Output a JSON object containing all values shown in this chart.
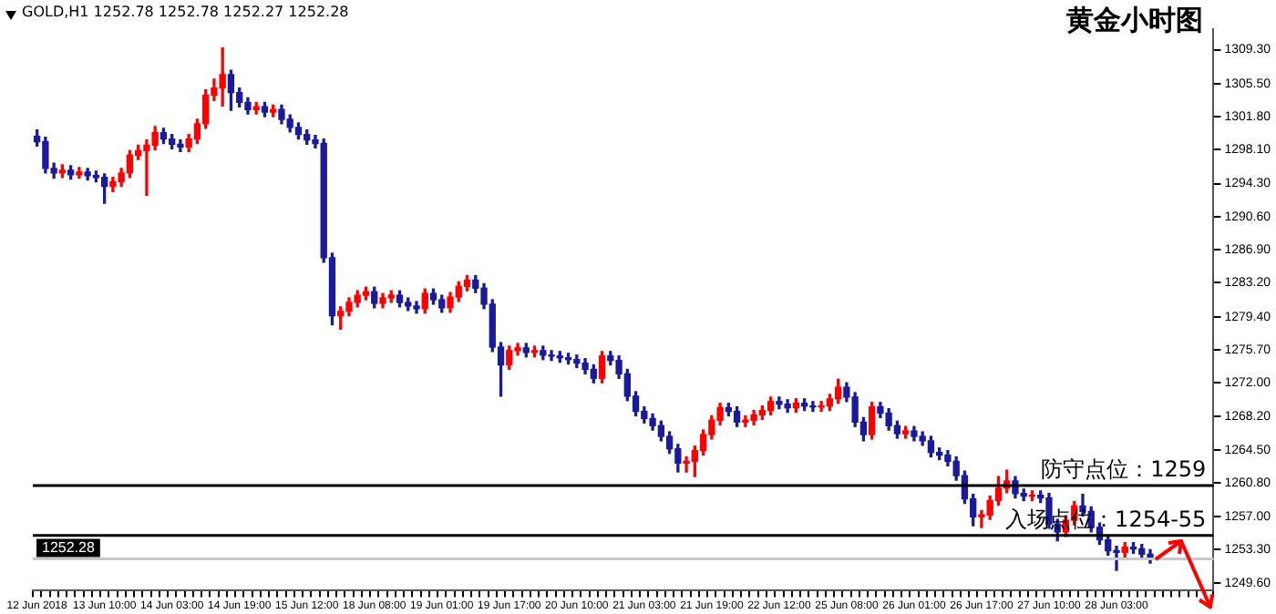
{
  "chart_data": {
    "type": "candlestick",
    "title": "黄金小时图",
    "subtitle": "GOLD,H1  1252.78 1252.78 1252.27 1252.28",
    "categories": [
      "12 Jun 2018",
      null,
      null,
      null,
      null,
      null,
      null,
      null,
      "13 Jun 10:00",
      null,
      null,
      null,
      null,
      null,
      null,
      null,
      "14 Jun 03:00",
      null,
      null,
      null,
      null,
      null,
      null,
      null,
      "14 Jun 19:00",
      null,
      null,
      null,
      null,
      null,
      null,
      null,
      "15 Jun 12:00",
      null,
      null,
      null,
      null,
      null,
      null,
      null,
      "18 Jun 08:00",
      null,
      null,
      null,
      null,
      null,
      null,
      null,
      "19 Jun 01:00",
      null,
      null,
      null,
      null,
      null,
      null,
      null,
      "19 Jun 17:00",
      null,
      null,
      null,
      null,
      null,
      null,
      null,
      "20 Jun 10:00",
      null,
      null,
      null,
      null,
      null,
      null,
      null,
      "21 Jun 03:00",
      null,
      null,
      null,
      null,
      null,
      null,
      null,
      "21 Jun 19:00",
      null,
      null,
      null,
      null,
      null,
      null,
      null,
      "22 Jun 12:00",
      null,
      null,
      null,
      null,
      null,
      null,
      null,
      "25 Jun 08:00",
      null,
      null,
      null,
      null,
      null,
      null,
      null,
      "26 Jun 01:00",
      null,
      null,
      null,
      null,
      null,
      null,
      null,
      "26 Jun 17:00",
      null,
      null,
      null,
      null,
      null,
      null,
      null,
      "27 Jun 10:00",
      null,
      null,
      null,
      null,
      null,
      null,
      null,
      "28 Jun 03:00",
      null,
      null,
      null,
      null,
      null,
      null,
      null,
      null,
      null,
      null,
      null
    ],
    "ohlc": [
      [
        1299.6,
        1300.3,
        1298.5,
        1299.0
      ],
      [
        1299.0,
        1299.5,
        1295.5,
        1296.0
      ],
      [
        1296.0,
        1296.6,
        1294.9,
        1295.5
      ],
      [
        1295.5,
        1296.4,
        1295.0,
        1295.8
      ],
      [
        1295.8,
        1296.3,
        1294.8,
        1295.3
      ],
      [
        1295.3,
        1296.1,
        1294.9,
        1295.6
      ],
      [
        1295.6,
        1296.0,
        1294.7,
        1295.2
      ],
      [
        1295.2,
        1295.7,
        1294.5,
        1295.0
      ],
      [
        1295.0,
        1295.4,
        1292.1,
        1294.0
      ],
      [
        1294.0,
        1295.0,
        1293.4,
        1294.5
      ],
      [
        1294.5,
        1296.0,
        1294.0,
        1295.5
      ],
      [
        1295.5,
        1298.0,
        1295.0,
        1297.5
      ],
      [
        1297.5,
        1298.6,
        1297.0,
        1298.0
      ],
      [
        1298.0,
        1299.2,
        1293.0,
        1298.6
      ],
      [
        1298.6,
        1300.7,
        1298.1,
        1300.0
      ],
      [
        1300.0,
        1300.5,
        1298.8,
        1299.3
      ],
      [
        1299.3,
        1299.8,
        1298.2,
        1298.7
      ],
      [
        1298.7,
        1299.2,
        1297.9,
        1298.4
      ],
      [
        1298.4,
        1299.8,
        1297.9,
        1299.3
      ],
      [
        1299.3,
        1301.5,
        1298.8,
        1301.0
      ],
      [
        1301.0,
        1304.8,
        1300.5,
        1304.2
      ],
      [
        1304.2,
        1306.0,
        1303.6,
        1305.0
      ],
      [
        1305.0,
        1309.5,
        1303.0,
        1306.5
      ],
      [
        1306.5,
        1307.0,
        1302.5,
        1304.5
      ],
      [
        1304.5,
        1305.0,
        1302.9,
        1303.4
      ],
      [
        1303.4,
        1303.9,
        1302.1,
        1302.6
      ],
      [
        1302.6,
        1303.4,
        1302.1,
        1302.9
      ],
      [
        1302.9,
        1303.4,
        1301.8,
        1302.3
      ],
      [
        1302.3,
        1303.1,
        1301.8,
        1302.6
      ],
      [
        1302.6,
        1303.1,
        1301.0,
        1301.5
      ],
      [
        1301.5,
        1302.0,
        1300.1,
        1300.6
      ],
      [
        1300.6,
        1301.1,
        1299.3,
        1299.8
      ],
      [
        1299.8,
        1300.3,
        1298.7,
        1299.2
      ],
      [
        1299.2,
        1299.7,
        1298.3,
        1298.8
      ],
      [
        1298.8,
        1299.3,
        1285.5,
        1286.0
      ],
      [
        1286.0,
        1286.5,
        1278.5,
        1279.5
      ],
      [
        1279.5,
        1280.5,
        1278.0,
        1280.0
      ],
      [
        1280.0,
        1281.5,
        1279.5,
        1281.0
      ],
      [
        1281.0,
        1282.3,
        1280.5,
        1281.8
      ],
      [
        1281.8,
        1282.7,
        1281.3,
        1282.2
      ],
      [
        1282.2,
        1282.7,
        1280.4,
        1280.9
      ],
      [
        1280.9,
        1282.0,
        1280.4,
        1281.5
      ],
      [
        1281.5,
        1282.3,
        1281.0,
        1281.8
      ],
      [
        1281.8,
        1282.3,
        1280.5,
        1281.0
      ],
      [
        1281.0,
        1281.5,
        1280.1,
        1280.6
      ],
      [
        1280.6,
        1281.1,
        1279.8,
        1280.3
      ],
      [
        1280.3,
        1282.5,
        1279.8,
        1282.0
      ],
      [
        1282.0,
        1282.5,
        1280.8,
        1281.3
      ],
      [
        1281.3,
        1281.8,
        1279.9,
        1280.4
      ],
      [
        1280.4,
        1282.1,
        1279.9,
        1281.6
      ],
      [
        1281.6,
        1283.3,
        1281.1,
        1282.8
      ],
      [
        1282.8,
        1284.0,
        1282.3,
        1283.5
      ],
      [
        1283.5,
        1284.0,
        1282.1,
        1282.6
      ],
      [
        1282.6,
        1283.1,
        1280.3,
        1280.8
      ],
      [
        1280.8,
        1281.3,
        1275.5,
        1276.0
      ],
      [
        1276.0,
        1276.5,
        1270.5,
        1274.0
      ],
      [
        1274.0,
        1276.1,
        1273.5,
        1275.6
      ],
      [
        1275.6,
        1276.4,
        1275.1,
        1275.9
      ],
      [
        1275.9,
        1276.4,
        1274.9,
        1275.4
      ],
      [
        1275.4,
        1276.1,
        1274.9,
        1275.6
      ],
      [
        1275.6,
        1276.1,
        1274.6,
        1275.1
      ],
      [
        1275.1,
        1275.6,
        1274.5,
        1275.0
      ],
      [
        1275.0,
        1275.5,
        1274.3,
        1274.8
      ],
      [
        1274.8,
        1275.3,
        1274.1,
        1274.6
      ],
      [
        1274.6,
        1275.1,
        1273.7,
        1274.2
      ],
      [
        1274.2,
        1274.7,
        1273.0,
        1273.5
      ],
      [
        1273.5,
        1274.0,
        1272.0,
        1272.5
      ],
      [
        1272.5,
        1275.5,
        1272.0,
        1275.0
      ],
      [
        1275.0,
        1275.5,
        1274.0,
        1274.5
      ],
      [
        1274.5,
        1275.0,
        1272.5,
        1273.0
      ],
      [
        1273.0,
        1273.5,
        1270.0,
        1270.5
      ],
      [
        1270.5,
        1271.0,
        1268.3,
        1268.8
      ],
      [
        1268.8,
        1269.3,
        1267.5,
        1268.0
      ],
      [
        1268.0,
        1268.5,
        1266.7,
        1267.2
      ],
      [
        1267.2,
        1267.7,
        1265.5,
        1266.0
      ],
      [
        1266.0,
        1266.5,
        1264.1,
        1264.6
      ],
      [
        1264.6,
        1265.1,
        1262.0,
        1263.0
      ],
      [
        1263.0,
        1263.7,
        1262.0,
        1263.2
      ],
      [
        1263.2,
        1264.9,
        1261.5,
        1264.4
      ],
      [
        1264.4,
        1266.7,
        1263.9,
        1266.2
      ],
      [
        1266.2,
        1268.3,
        1265.7,
        1267.8
      ],
      [
        1267.8,
        1269.7,
        1267.3,
        1269.2
      ],
      [
        1269.2,
        1269.7,
        1268.3,
        1268.8
      ],
      [
        1268.8,
        1269.3,
        1267.1,
        1267.6
      ],
      [
        1267.6,
        1268.3,
        1267.1,
        1267.8
      ],
      [
        1267.8,
        1268.9,
        1267.3,
        1268.4
      ],
      [
        1268.4,
        1269.4,
        1267.9,
        1268.9
      ],
      [
        1268.9,
        1270.4,
        1268.4,
        1269.9
      ],
      [
        1269.9,
        1270.4,
        1269.1,
        1269.6
      ],
      [
        1269.6,
        1270.1,
        1268.7,
        1269.2
      ],
      [
        1269.2,
        1270.2,
        1268.7,
        1269.7
      ],
      [
        1269.7,
        1270.2,
        1268.9,
        1269.4
      ],
      [
        1269.4,
        1269.9,
        1268.8,
        1269.3
      ],
      [
        1269.3,
        1269.9,
        1268.8,
        1269.4
      ],
      [
        1269.4,
        1270.7,
        1268.9,
        1270.2
      ],
      [
        1270.2,
        1272.4,
        1269.7,
        1271.5
      ],
      [
        1271.5,
        1272.0,
        1269.9,
        1270.4
      ],
      [
        1270.4,
        1270.9,
        1267.1,
        1267.6
      ],
      [
        1267.6,
        1268.1,
        1265.5,
        1266.2
      ],
      [
        1266.2,
        1269.8,
        1265.7,
        1269.3
      ],
      [
        1269.3,
        1269.8,
        1268.1,
        1268.6
      ],
      [
        1268.6,
        1269.1,
        1266.7,
        1267.2
      ],
      [
        1267.2,
        1267.7,
        1265.8,
        1266.3
      ],
      [
        1266.3,
        1267.1,
        1265.8,
        1266.6
      ],
      [
        1266.6,
        1267.1,
        1265.5,
        1266.0
      ],
      [
        1266.0,
        1266.5,
        1265.0,
        1265.5
      ],
      [
        1265.5,
        1266.0,
        1263.7,
        1264.2
      ],
      [
        1264.2,
        1264.7,
        1263.4,
        1263.9
      ],
      [
        1263.9,
        1264.4,
        1262.7,
        1263.2
      ],
      [
        1263.2,
        1263.7,
        1261.1,
        1261.6
      ],
      [
        1261.6,
        1262.1,
        1258.5,
        1259.0
      ],
      [
        1259.0,
        1259.5,
        1256.0,
        1257.0
      ],
      [
        1257.0,
        1257.7,
        1255.8,
        1257.2
      ],
      [
        1257.2,
        1259.3,
        1256.7,
        1258.8
      ],
      [
        1258.8,
        1261.5,
        1258.3,
        1260.2
      ],
      [
        1260.2,
        1262.2,
        1259.7,
        1261.0
      ],
      [
        1261.0,
        1261.5,
        1259.1,
        1259.6
      ],
      [
        1259.6,
        1260.1,
        1258.8,
        1259.3
      ],
      [
        1259.3,
        1259.9,
        1258.8,
        1259.4
      ],
      [
        1259.4,
        1259.9,
        1258.6,
        1259.1
      ],
      [
        1259.1,
        1259.6,
        1255.7,
        1256.2
      ],
      [
        1256.2,
        1256.7,
        1254.3,
        1255.3
      ],
      [
        1255.3,
        1257.1,
        1254.8,
        1256.6
      ],
      [
        1256.6,
        1258.7,
        1256.1,
        1258.2
      ],
      [
        1258.2,
        1259.5,
        1257.1,
        1257.6
      ],
      [
        1257.6,
        1258.1,
        1255.3,
        1255.8
      ],
      [
        1255.8,
        1256.3,
        1253.9,
        1254.4
      ],
      [
        1254.4,
        1254.9,
        1252.7,
        1253.2
      ],
      [
        1253.2,
        1253.7,
        1251.0,
        1253.0
      ],
      [
        1253.0,
        1254.1,
        1252.5,
        1253.6
      ],
      [
        1253.6,
        1254.1,
        1252.9,
        1253.4
      ],
      [
        1253.4,
        1253.9,
        1252.3,
        1252.8
      ],
      [
        1252.8,
        1253.3,
        1251.8,
        1252.28
      ],
      null,
      null,
      null,
      null,
      null,
      null,
      null
    ],
    "ylim": [
      1248.8,
      1311.6
    ],
    "yticks": [
      {
        "value": 1309.3,
        "label": "1309.30"
      },
      {
        "value": 1305.5,
        "label": "1305.50"
      },
      {
        "value": 1301.8,
        "label": "1301.80"
      },
      {
        "value": 1298.1,
        "label": "1298.10"
      },
      {
        "value": 1294.3,
        "label": "1294.30"
      },
      {
        "value": 1290.6,
        "label": "1290.60"
      },
      {
        "value": 1286.9,
        "label": "1286.90"
      },
      {
        "value": 1283.2,
        "label": "1283.20"
      },
      {
        "value": 1279.4,
        "label": "1279.40"
      },
      {
        "value": 1275.7,
        "label": "1275.70"
      },
      {
        "value": 1272.0,
        "label": "1272.00"
      },
      {
        "value": 1268.2,
        "label": "1268.20"
      },
      {
        "value": 1264.5,
        "label": "1264.50"
      },
      {
        "value": 1260.8,
        "label": "1260.80"
      },
      {
        "value": 1257.0,
        "label": "1257.00"
      },
      {
        "value": 1253.3,
        "label": "1253.30"
      },
      {
        "value": 1249.6,
        "label": "1249.60"
      }
    ],
    "ref_lines": [
      {
        "axis": "y",
        "value": 1260.5,
        "label": "防守点位：1259",
        "color": "#000000"
      },
      {
        "axis": "y",
        "value": 1254.9,
        "label": "入场点位：1254-55",
        "color": "#000000"
      },
      {
        "axis": "y",
        "value": 1252.28,
        "label": "1252.28",
        "color": "#c8c8c8"
      }
    ],
    "grid": false,
    "legend": false
  }
}
